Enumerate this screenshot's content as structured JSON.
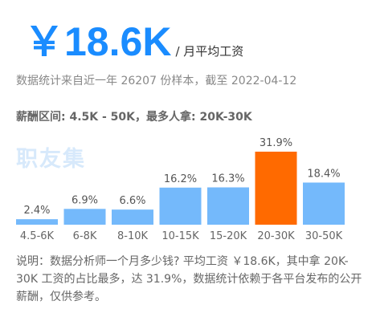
{
  "header": {
    "salary": "￥18.6K",
    "unit": "/ 月平均工资",
    "stat_line": "数据统计来自近一年 26207 份样本，截至 2022-04-12",
    "range_line": "薪酬区间: 4.5K - 50K，最多人拿: 20K-30K",
    "watermark": "职友集"
  },
  "note": "说明：数据分析师一个月多少钱? 平均工资 ￥18.6K，其中拿 20K-30K 工资的占比最多，达 31.9%，数据统计依赖于各平台发布的公开薪酬，仅供参考。",
  "colors": {
    "accent": "#1a8cff",
    "bar": "#74b9fb",
    "highlight_bar": "#ff6a00"
  },
  "chart_data": {
    "type": "bar",
    "categories": [
      "4.5-6K",
      "6-8K",
      "8-10K",
      "10-15K",
      "15-20K",
      "20-30K",
      "30-50K"
    ],
    "values": [
      2.4,
      6.9,
      6.6,
      16.2,
      16.3,
      31.9,
      18.4
    ],
    "value_labels": [
      "2.4%",
      "6.9%",
      "6.6%",
      "16.2%",
      "16.3%",
      "31.9%",
      "18.4%"
    ],
    "highlight_index": 5,
    "ylim": [
      0,
      31.9
    ],
    "title": "",
    "xlabel": "",
    "ylabel": "",
    "grid": false,
    "legend": "none"
  }
}
